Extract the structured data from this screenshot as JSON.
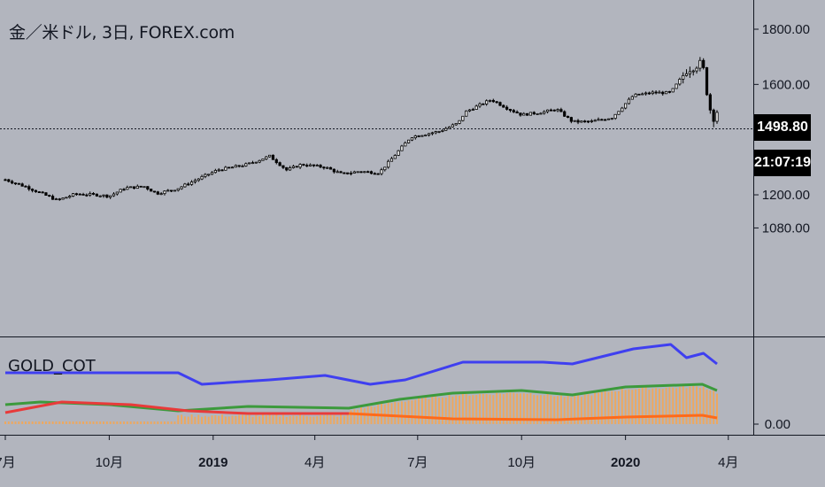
{
  "chart_title": "金／米ドル, 3日, FOREX.com",
  "indicator_title": "GOLD_COT",
  "last_price": "1498.80",
  "countdown": "21:07:19",
  "colors": {
    "background": "#b2b5be",
    "candle": "#000000",
    "cot_blue": "#3f3ff0",
    "cot_green": "#3c9a3c",
    "cot_red": "#e83a3a",
    "cot_orange_line": "#ff6a1a",
    "cot_orange_bars": "#f7a650"
  },
  "chart_data": [
    {
      "type": "candlestick",
      "title": "金／米ドル, 3日, FOREX.com",
      "y_ticks": [
        "1800.00",
        "1600.00",
        "1200.00",
        "1080.00"
      ],
      "x_ticks": [
        "7月",
        "10月",
        "2019",
        "4月",
        "7月",
        "10月",
        "2020",
        "4月"
      ],
      "last_value": 1498.8,
      "price_path": [
        [
          "2018-07-01",
          1255
        ],
        [
          "2018-07-20",
          1228
        ],
        [
          "2018-08-16",
          1180
        ],
        [
          "2018-09-01",
          1203
        ],
        [
          "2018-09-20",
          1200
        ],
        [
          "2018-10-01",
          1195
        ],
        [
          "2018-10-15",
          1225
        ],
        [
          "2018-11-01",
          1230
        ],
        [
          "2018-11-12",
          1205
        ],
        [
          "2018-11-30",
          1222
        ],
        [
          "2018-12-20",
          1260
        ],
        [
          "2019-01-05",
          1290
        ],
        [
          "2019-01-31",
          1310
        ],
        [
          "2019-02-20",
          1340
        ],
        [
          "2019-03-07",
          1290
        ],
        [
          "2019-03-20",
          1310
        ],
        [
          "2019-04-10",
          1300
        ],
        [
          "2019-04-25",
          1275
        ],
        [
          "2019-05-10",
          1285
        ],
        [
          "2019-05-28",
          1280
        ],
        [
          "2019-06-10",
          1340
        ],
        [
          "2019-06-25",
          1410
        ],
        [
          "2019-07-20",
          1430
        ],
        [
          "2019-08-06",
          1460
        ],
        [
          "2019-08-12",
          1500
        ],
        [
          "2019-09-04",
          1545
        ],
        [
          "2019-09-20",
          1510
        ],
        [
          "2019-10-01",
          1490
        ],
        [
          "2019-10-20",
          1500
        ],
        [
          "2019-11-01",
          1510
        ],
        [
          "2019-11-15",
          1465
        ],
        [
          "2019-12-01",
          1465
        ],
        [
          "2019-12-20",
          1480
        ],
        [
          "2020-01-08",
          1560
        ],
        [
          "2020-01-25",
          1570
        ],
        [
          "2020-02-10",
          1570
        ],
        [
          "2020-02-24",
          1650
        ],
        [
          "2020-03-09",
          1680
        ],
        [
          "2020-03-15",
          1520
        ],
        [
          "2020-03-19",
          1480
        ],
        [
          "2020-03-22",
          1498.8
        ]
      ]
    },
    {
      "type": "line",
      "title": "GOLD_COT",
      "y_ticks": [
        "0.00"
      ],
      "series": [
        {
          "color": "#3f3ff0",
          "values": [
            [
              "2018-07-01",
              58
            ],
            [
              "2018-12-01",
              58
            ],
            [
              "2018-12-22",
              45
            ],
            [
              "2019-02-20",
              50
            ],
            [
              "2019-04-10",
              55
            ],
            [
              "2019-05-20",
              45
            ],
            [
              "2019-06-20",
              50
            ],
            [
              "2019-08-10",
              70
            ],
            [
              "2019-10-20",
              70
            ],
            [
              "2019-11-15",
              68
            ],
            [
              "2020-01-08",
              85
            ],
            [
              "2020-02-10",
              90
            ],
            [
              "2020-02-24",
              75
            ],
            [
              "2020-03-10",
              80
            ],
            [
              "2020-03-22",
              68
            ]
          ]
        },
        {
          "color": "#3c9a3c",
          "values": [
            [
              "2018-07-01",
              22
            ],
            [
              "2018-08-01",
              25
            ],
            [
              "2018-10-01",
              22
            ],
            [
              "2018-12-01",
              15
            ],
            [
              "2019-02-01",
              20
            ],
            [
              "2019-05-01",
              18
            ],
            [
              "2019-06-15",
              28
            ],
            [
              "2019-08-01",
              35
            ],
            [
              "2019-10-01",
              38
            ],
            [
              "2019-11-15",
              33
            ],
            [
              "2020-01-01",
              42
            ],
            [
              "2020-03-09",
              45
            ],
            [
              "2020-03-22",
              38
            ]
          ]
        },
        {
          "color": "#e83a3a",
          "values": [
            [
              "2018-07-01",
              13
            ],
            [
              "2018-08-20",
              25
            ],
            [
              "2018-10-20",
              22
            ],
            [
              "2018-12-10",
              15
            ],
            [
              "2019-02-01",
              12
            ],
            [
              "2019-05-01",
              12
            ]
          ]
        },
        {
          "color": "#ff6a1a",
          "values": [
            [
              "2019-05-01",
              12
            ],
            [
              "2019-08-01",
              6
            ],
            [
              "2019-11-01",
              5
            ],
            [
              "2020-01-01",
              8
            ],
            [
              "2020-03-09",
              10
            ],
            [
              "2020-03-22",
              7
            ]
          ]
        }
      ]
    }
  ]
}
